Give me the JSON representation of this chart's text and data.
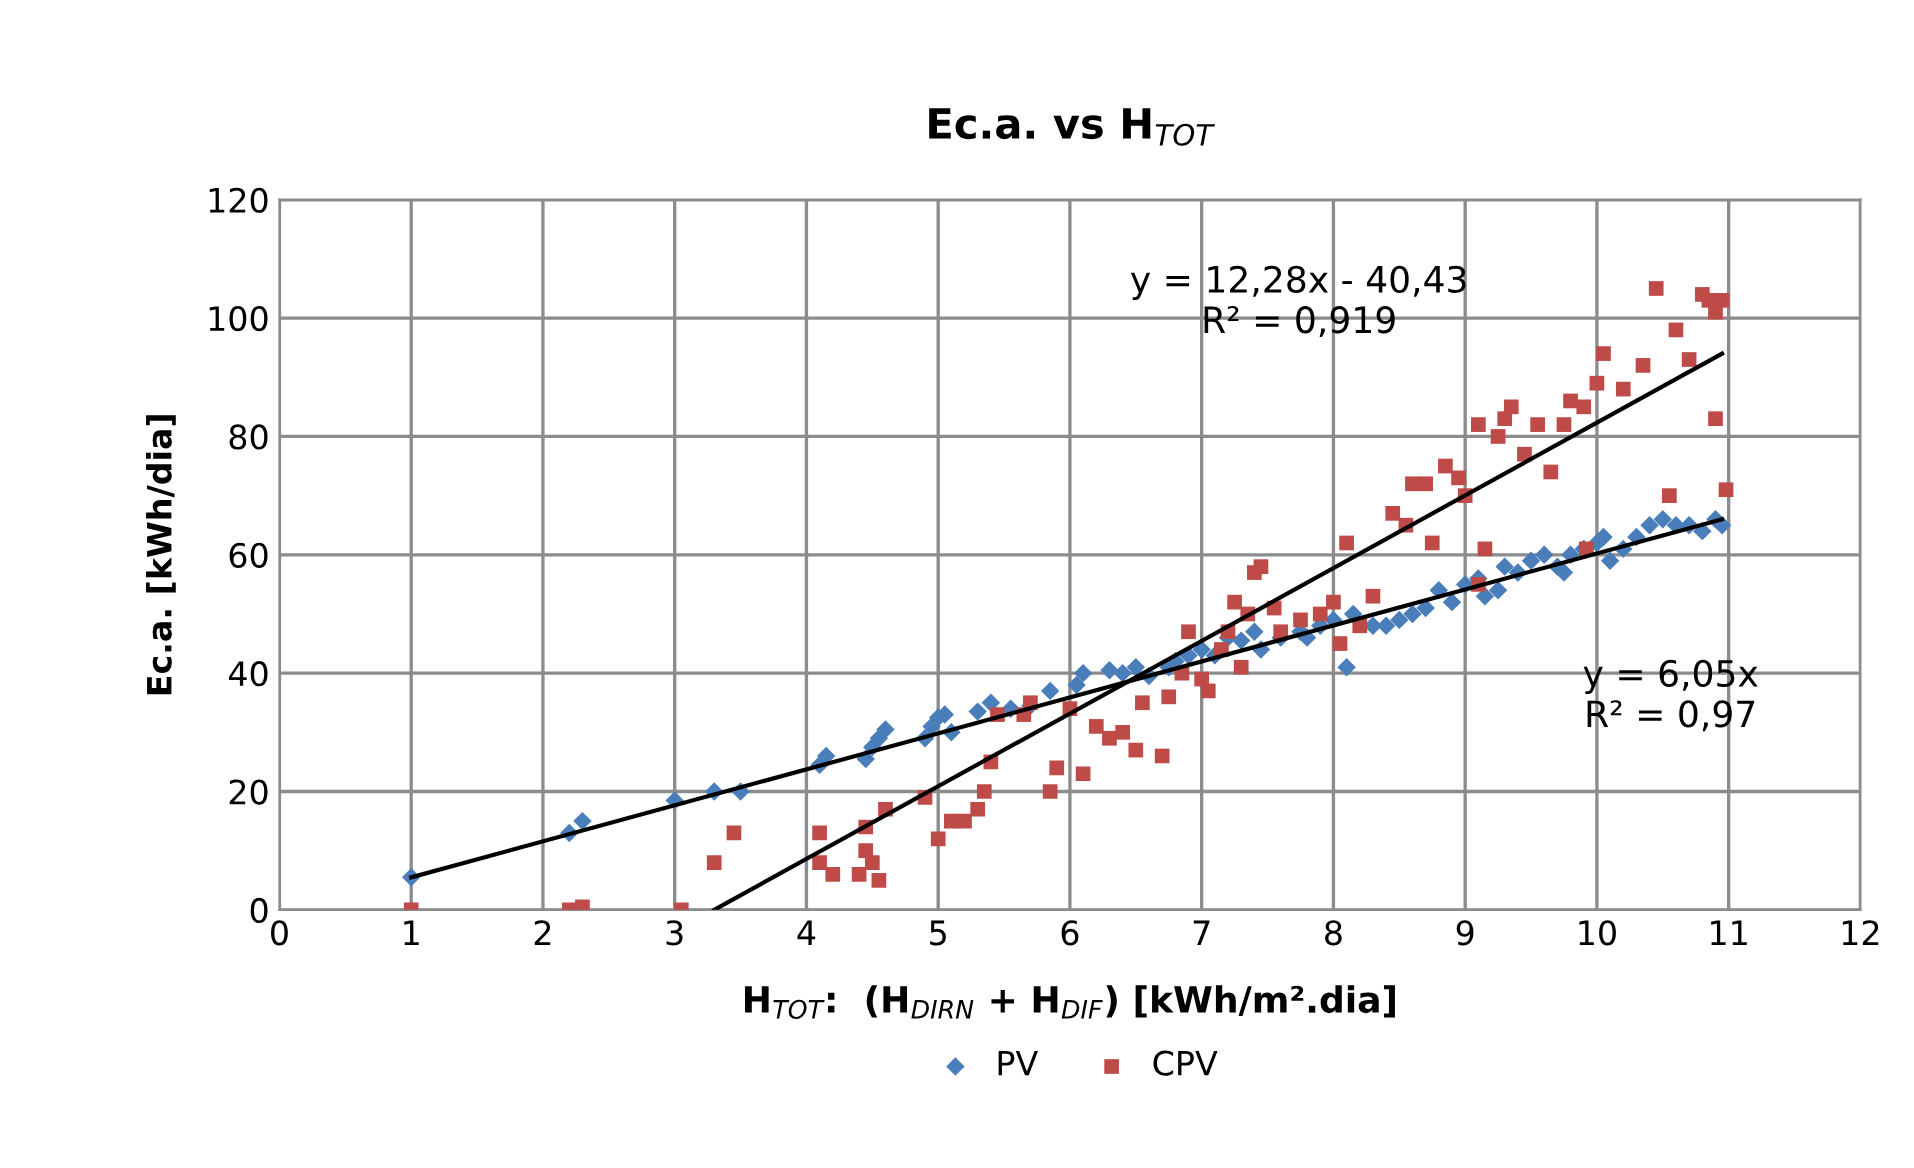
{
  "chart_data": {
    "type": "scatter",
    "title": "Ec.a. vs H$_{TOT}$",
    "xlabel": "H$_{TOT}$:  (H$_{DIRN}$ + H$_{DIF}$) [kWh/m².dia]",
    "ylabel": "Ec.a. [kWh/dia]",
    "xlim": [
      0,
      12
    ],
    "xticks": [
      0,
      1,
      2,
      3,
      4,
      5,
      6,
      7,
      8,
      9,
      10,
      11,
      12
    ],
    "ylim": [
      0,
      120
    ],
    "yticks": [
      0,
      20,
      40,
      60,
      80,
      100,
      120
    ],
    "grid": true,
    "legend": "bottom",
    "series": [
      {
        "name": "PV",
        "color": "#4a7ebb",
        "marker": "diamond",
        "x": [
          1,
          2.2,
          2.3,
          3,
          3.3,
          3.5,
          4.1,
          4.15,
          4.45,
          4.5,
          4.55,
          4.6,
          4.95,
          5,
          5.05,
          5.3,
          5.4,
          5.55,
          5.7,
          5.85,
          6.05,
          6.1,
          6.3,
          6.4,
          6.5,
          6.6,
          6.8,
          6.9,
          7.0,
          7.1,
          7.2,
          7.3,
          7.4,
          7.45,
          7.6,
          7.75,
          7.9,
          8.0,
          8.1,
          8.15,
          8.4,
          8.5,
          8.6,
          8.7,
          8.8,
          8.9,
          9.0,
          9.1,
          9.15,
          9.3,
          9.4,
          9.5,
          9.6,
          9.7,
          9.75,
          9.8,
          9.9,
          10.0,
          10.1,
          10.2,
          10.3,
          10.4,
          10.5,
          10.6,
          10.7,
          10.8,
          10.9,
          10.95,
          5.1,
          4.9,
          6.75,
          7.8,
          8.3,
          9.25,
          10.05
        ],
        "values": [
          5.5,
          13,
          15,
          18.5,
          20,
          20,
          24.5,
          26,
          25.5,
          27.5,
          29,
          30.5,
          31,
          32.5,
          33,
          33.5,
          35,
          34,
          34.5,
          37,
          38,
          40,
          40.5,
          40,
          41,
          39.5,
          42,
          43,
          44,
          43,
          46,
          45.5,
          47,
          44,
          46,
          47,
          48,
          49,
          41,
          50,
          48,
          49,
          50,
          51,
          54,
          52,
          55,
          56,
          53,
          58,
          57,
          59,
          60,
          58,
          57,
          60,
          61,
          62,
          59,
          61,
          63,
          65,
          66,
          65,
          65,
          64,
          66,
          65,
          30,
          29,
          41,
          46,
          48,
          54,
          63
        ]
      },
      {
        "name": "CPV",
        "color": "#be4b48",
        "marker": "square",
        "x": [
          1,
          2.2,
          2.3,
          3.05,
          3.3,
          3.45,
          4.1,
          4.1,
          4.2,
          4.4,
          4.45,
          4.5,
          4.55,
          4.6,
          4.45,
          4.9,
          5.0,
          5.1,
          5.2,
          5.3,
          5.35,
          5.4,
          5.45,
          5.7,
          5.65,
          5.85,
          5.9,
          6.0,
          6.1,
          6.2,
          6.3,
          6.4,
          6.5,
          6.55,
          6.7,
          6.75,
          6.85,
          6.9,
          7.0,
          7.05,
          7.15,
          7.2,
          7.3,
          7.35,
          7.4,
          7.45,
          7.55,
          7.6,
          7.75,
          7.9,
          8.0,
          8.05,
          8.1,
          8.3,
          8.45,
          8.55,
          8.7,
          8.6,
          8.75,
          8.85,
          8.95,
          9.0,
          9.1,
          9.15,
          9.25,
          9.3,
          9.35,
          9.45,
          9.55,
          9.65,
          9.75,
          9.8,
          9.9,
          10.0,
          10.05,
          10.2,
          10.35,
          10.45,
          10.6,
          10.7,
          10.8,
          10.85,
          10.9,
          10.95,
          10.55,
          10.9,
          10.98,
          8.2,
          7.25,
          9.1,
          9.92
        ],
        "values": [
          0,
          0,
          0.5,
          0,
          8,
          13,
          13,
          8,
          6,
          6,
          10,
          8,
          5,
          17,
          14,
          19,
          12,
          15,
          15,
          17,
          20,
          25,
          33,
          35,
          33,
          20,
          24,
          34,
          23,
          31,
          29,
          30,
          27,
          35,
          26,
          36,
          40,
          47,
          39,
          37,
          44,
          47,
          41,
          50,
          57,
          58,
          51,
          47,
          49,
          50,
          52,
          45,
          62,
          53,
          67,
          65,
          72,
          72,
          62,
          75,
          73,
          70,
          82,
          61,
          80,
          83,
          85,
          77,
          82,
          74,
          82,
          86,
          85,
          89,
          94,
          88,
          92,
          105,
          98,
          93,
          104,
          103,
          101,
          103,
          70,
          83,
          71,
          48,
          52,
          55,
          61
        ]
      },
      {
        "type": "line",
        "color": "#000000",
        "x": [
          1,
          10.95
        ],
        "values": [
          5.5,
          66
        ]
      },
      {
        "type": "line",
        "color": "#000000",
        "x": [
          3.3,
          10.95
        ],
        "values": [
          0,
          94
        ]
      }
    ],
    "annotations": [
      "y = 12,28x - 40,43\nR² = 0,919",
      "y = 6,05x\nR² = 0,97"
    ]
  }
}
